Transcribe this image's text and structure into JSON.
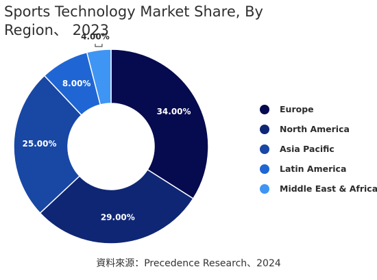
{
  "chart_data": {
    "type": "pie",
    "title": "Sports Technology Market Share, By Region、 2023",
    "categories": [
      "Europe",
      "North America",
      "Asia Pacific",
      "Latin America",
      "Middle East & Africa"
    ],
    "values": [
      34.0,
      29.0,
      25.0,
      8.0,
      4.0
    ],
    "data_labels": [
      "34.00%",
      "29.00%",
      "25.00%",
      "8.00%",
      "4.00%"
    ],
    "colors": [
      "#060a4e",
      "#0f2675",
      "#1847a4",
      "#1f66d4",
      "#3f95f4"
    ],
    "donut": true,
    "legend": "right",
    "source": "資料來源：Precedence Research、2024"
  }
}
